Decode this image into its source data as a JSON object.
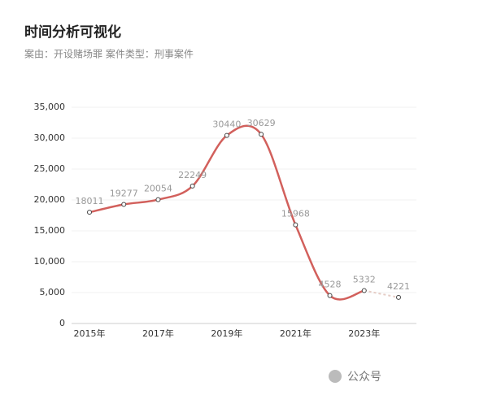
{
  "chart_data": {
    "type": "line",
    "title": "时间分析可视化",
    "subtitle": "案由：开设赌场罪  案件类型：刑事案件",
    "categories": [
      "2015年",
      null,
      "2017年",
      null,
      "2019年",
      null,
      "2021年",
      null,
      "2023年",
      null
    ],
    "series": [
      {
        "color": "#d2605c",
        "values": [
          18011,
          19277,
          20054,
          22249,
          30440,
          30629,
          15968,
          4528,
          5332,
          4221
        ]
      }
    ],
    "last_segment_style": "dashed",
    "last_segment_color": "#e6cdc6",
    "ylim": [
      0,
      35000
    ],
    "yticks": [
      0,
      {
        "value": 5000,
        "label": "5,000"
      },
      {
        "value": 10000,
        "label": "10,000"
      },
      {
        "value": 15000,
        "label": "15,000"
      },
      {
        "value": 20000,
        "label": "20,000"
      },
      {
        "value": 25000,
        "label": "25,000"
      },
      {
        "value": 30000,
        "label": "30,000"
      },
      {
        "value": 35000,
        "label": "35,000"
      }
    ],
    "grid": true,
    "watermark": "公众号"
  }
}
